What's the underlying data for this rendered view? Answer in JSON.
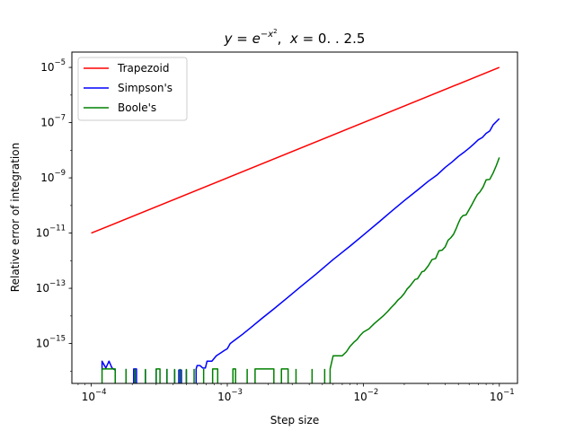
{
  "chart_data": {
    "type": "line",
    "title": {
      "y_var": "y",
      "eq": " = ",
      "e_base": "e",
      "exponent_minus": "−",
      "exponent_x": "x",
      "exponent_pow": "2",
      "sep": ",  ",
      "x_var": "x",
      "range_text": " = 0. . 2.5"
    },
    "xlabel": "Step size",
    "ylabel": "Relative error of integration",
    "x_scale": "log",
    "y_scale": "log",
    "xlim": [
      7.2e-05,
      0.136
    ],
    "ylim": [
      3.6e-17,
      3.6e-05
    ],
    "x_ticks": [
      {
        "value": 0.0001,
        "base": "10",
        "exp": "−4"
      },
      {
        "value": 0.001,
        "base": "10",
        "exp": "−3"
      },
      {
        "value": 0.01,
        "base": "10",
        "exp": "−2"
      },
      {
        "value": 0.1,
        "base": "10",
        "exp": "−1"
      }
    ],
    "y_ticks": [
      {
        "value": 1e-15,
        "base": "10",
        "exp": "−15"
      },
      {
        "value": 1e-13,
        "base": "10",
        "exp": "−13"
      },
      {
        "value": 1e-11,
        "base": "10",
        "exp": "−11"
      },
      {
        "value": 1e-09,
        "base": "10",
        "exp": "−9"
      },
      {
        "value": 1e-07,
        "base": "10",
        "exp": "−7"
      },
      {
        "value": 1e-05,
        "base": "10",
        "exp": "−5"
      }
    ],
    "grid": false,
    "legend_position": "top-left",
    "series": [
      {
        "name": "Trapezoid",
        "color": "#ff0000",
        "points": [
          [
            0.0001,
            1e-11
          ],
          [
            0.1,
            1e-05
          ]
        ]
      },
      {
        "name": "Simpson's",
        "color": "#0000ff",
        "points": [
          [
            0.00012,
            1.1e-16
          ],
          [
            0.00012,
            2.3e-16
          ],
          [
            0.000128,
            1.3e-16
          ],
          [
            0.000135,
            2.3e-16
          ],
          [
            0.000142,
            1.3e-16
          ],
          [
            0.00015,
            1.1e-16
          ],
          [
            0.00015,
            3.6e-17
          ],
          null,
          [
            0.00018,
            3.6e-17
          ],
          [
            0.00018,
            1.2e-16
          ],
          null,
          [
            0.000205,
            3.6e-17
          ],
          [
            0.000205,
            1.2e-16
          ],
          [
            0.000215,
            1.2e-16
          ],
          [
            0.000215,
            3.6e-17
          ],
          null,
          [
            0.00025,
            3.6e-17
          ],
          [
            0.00025,
            1.1e-16
          ],
          null,
          [
            0.0003,
            3.6e-17
          ],
          [
            0.0003,
            1.2e-16
          ],
          null,
          [
            0.00036,
            3.6e-17
          ],
          [
            0.00036,
            1.2e-16
          ],
          null,
          [
            0.00041,
            3.6e-17
          ],
          [
            0.00041,
            1.1e-16
          ],
          null,
          [
            0.00044,
            3.6e-17
          ],
          [
            0.00044,
            1.1e-16
          ],
          [
            0.00046,
            1.1e-16
          ],
          [
            0.00046,
            3.6e-17
          ],
          null,
          [
            0.0005,
            3.6e-17
          ],
          [
            0.0005,
            1.1e-16
          ],
          null,
          [
            0.00059,
            3.6e-17
          ],
          [
            0.00059,
            1.2e-16
          ],
          [
            0.0006,
            1.6e-16
          ],
          [
            0.00063,
            1.6e-16
          ],
          [
            0.00066,
            1.3e-16
          ],
          [
            0.00069,
            1.3e-16
          ],
          [
            0.00071,
            2.3e-16
          ],
          [
            0.00077,
            2.3e-16
          ],
          [
            0.00083,
            3.6e-16
          ],
          [
            0.00089,
            4.5e-16
          ],
          [
            0.00095,
            5.6e-16
          ],
          [
            0.001,
            6.5e-16
          ],
          [
            0.00105,
            1e-15
          ],
          [
            0.00115,
            1.4e-15
          ],
          [
            0.0013,
            2.2e-15
          ],
          [
            0.0015,
            3.9e-15
          ],
          [
            0.0018,
            8.2e-15
          ],
          [
            0.0022,
            1.8e-14
          ],
          [
            0.0028,
            4.8e-14
          ],
          [
            0.0035,
            1.2e-13
          ],
          [
            0.0045,
            3.3e-13
          ],
          [
            0.006,
            1.1e-12
          ],
          [
            0.008,
            3.4e-12
          ],
          [
            0.01,
            8.5e-12
          ],
          [
            0.013,
            2.5e-11
          ],
          [
            0.016,
            6e-11
          ],
          [
            0.02,
            1.5e-10
          ],
          [
            0.025,
            3.6e-10
          ],
          [
            0.03,
            7.5e-10
          ],
          [
            0.035,
            1.3e-09
          ],
          [
            0.04,
            2.4e-09
          ],
          [
            0.045,
            3.8e-09
          ],
          [
            0.05,
            6e-09
          ],
          [
            0.055,
            8.5e-09
          ],
          [
            0.06,
            1.2e-08
          ],
          [
            0.065,
            1.7e-08
          ],
          [
            0.07,
            2.4e-08
          ],
          [
            0.075,
            2.9e-08
          ],
          [
            0.08,
            4.1e-08
          ],
          [
            0.085,
            5e-08
          ],
          [
            0.09,
            8.3e-08
          ],
          [
            0.1,
            1.4e-07
          ]
        ]
      },
      {
        "name": "Boole's",
        "color": "#008000",
        "points": [
          [
            0.00012,
            3.6e-17
          ],
          [
            0.00012,
            1.2e-16
          ],
          [
            0.00015,
            1.2e-16
          ],
          [
            0.00015,
            3.6e-17
          ],
          null,
          [
            0.00018,
            3.6e-17
          ],
          [
            0.00018,
            1.2e-16
          ],
          null,
          [
            0.00021,
            3.6e-17
          ],
          [
            0.00021,
            1.2e-16
          ],
          null,
          [
            0.00025,
            3.6e-17
          ],
          [
            0.00025,
            1.2e-16
          ],
          null,
          [
            0.0003,
            3.6e-17
          ],
          [
            0.0003,
            1.2e-16
          ],
          [
            0.00032,
            1.2e-16
          ],
          [
            0.00032,
            3.6e-17
          ],
          null,
          [
            0.00036,
            3.6e-17
          ],
          [
            0.00036,
            1.2e-16
          ],
          null,
          [
            0.00041,
            3.6e-17
          ],
          [
            0.00041,
            1.2e-16
          ],
          null,
          [
            0.00045,
            3.6e-17
          ],
          [
            0.00045,
            1.2e-16
          ],
          null,
          [
            0.0005,
            3.6e-17
          ],
          [
            0.0005,
            1.2e-16
          ],
          null,
          [
            0.00057,
            3.6e-17
          ],
          [
            0.00057,
            1.2e-16
          ],
          null,
          [
            0.00067,
            3.6e-17
          ],
          [
            0.00067,
            1.2e-16
          ],
          null,
          [
            0.00078,
            3.6e-17
          ],
          [
            0.00078,
            1.2e-16
          ],
          [
            0.00085,
            1.2e-16
          ],
          [
            0.00085,
            3.6e-17
          ],
          null,
          [
            0.0011,
            3.6e-17
          ],
          [
            0.0011,
            1.2e-16
          ],
          [
            0.00115,
            1.2e-16
          ],
          [
            0.00115,
            3.6e-17
          ],
          null,
          [
            0.0014,
            3.6e-17
          ],
          [
            0.0014,
            1.2e-16
          ],
          null,
          [
            0.0016,
            3.6e-17
          ],
          [
            0.0016,
            1.2e-16
          ],
          [
            0.0022,
            1.2e-16
          ],
          [
            0.0022,
            3.6e-17
          ],
          null,
          [
            0.0025,
            3.6e-17
          ],
          [
            0.0025,
            1.2e-16
          ],
          [
            0.0028,
            1.2e-16
          ],
          [
            0.0028,
            3.6e-17
          ],
          null,
          [
            0.0032,
            3.6e-17
          ],
          [
            0.0032,
            1.2e-16
          ],
          null,
          [
            0.0042,
            3.6e-17
          ],
          [
            0.0042,
            1.2e-16
          ],
          null,
          [
            0.0052,
            3.6e-17
          ],
          [
            0.0052,
            1.2e-16
          ],
          null,
          [
            0.0057,
            3.6e-17
          ],
          [
            0.0057,
            1.2e-16
          ],
          [
            0.006,
            3.6e-16
          ],
          [
            0.007,
            3.6e-16
          ],
          [
            0.0075,
            5e-16
          ],
          [
            0.008,
            8e-16
          ],
          [
            0.0085,
            1.1e-15
          ],
          [
            0.009,
            1.4e-15
          ],
          [
            0.0095,
            2e-15
          ],
          [
            0.01,
            2.6e-15
          ],
          [
            0.011,
            3.4e-15
          ],
          [
            0.012,
            5.2e-15
          ],
          [
            0.013,
            7.3e-15
          ],
          [
            0.014,
            1e-14
          ],
          [
            0.015,
            1.4e-14
          ],
          [
            0.016,
            2e-14
          ],
          [
            0.017,
            2.7e-14
          ],
          [
            0.018,
            3.8e-14
          ],
          [
            0.019,
            4.8e-14
          ],
          [
            0.02,
            6.5e-14
          ],
          [
            0.021,
            9.5e-14
          ],
          [
            0.022,
            1.2e-13
          ],
          [
            0.024,
            2.1e-13
          ],
          [
            0.025,
            2.2e-13
          ],
          [
            0.027,
            4e-13
          ],
          [
            0.028,
            4.2e-13
          ],
          [
            0.03,
            6.5e-13
          ],
          [
            0.032,
            1.1e-12
          ],
          [
            0.034,
            1.2e-12
          ],
          [
            0.036,
            2.3e-12
          ],
          [
            0.038,
            2.4e-12
          ],
          [
            0.04,
            3.2e-12
          ],
          [
            0.042,
            5.5e-12
          ],
          [
            0.044,
            6.8e-12
          ],
          [
            0.046,
            9e-12
          ],
          [
            0.048,
            1.4e-11
          ],
          [
            0.05,
            2.3e-11
          ],
          [
            0.052,
            3.5e-11
          ],
          [
            0.054,
            4.3e-11
          ],
          [
            0.057,
            4.6e-11
          ],
          [
            0.06,
            7.2e-11
          ],
          [
            0.063,
            1.1e-10
          ],
          [
            0.066,
            1.7e-10
          ],
          [
            0.069,
            2.5e-10
          ],
          [
            0.072,
            3.1e-10
          ],
          [
            0.076,
            4.7e-10
          ],
          [
            0.08,
            8.5e-10
          ],
          [
            0.085,
            8.8e-10
          ],
          [
            0.09,
            1.5e-09
          ],
          [
            0.095,
            2.8e-09
          ],
          [
            0.1,
            5.5e-09
          ]
        ]
      }
    ]
  }
}
